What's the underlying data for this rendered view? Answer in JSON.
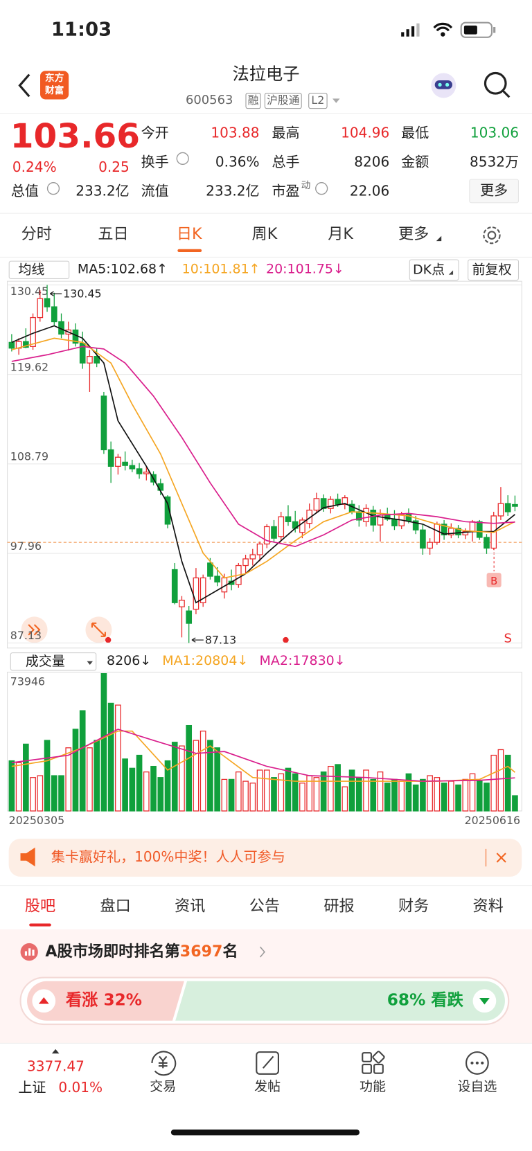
{
  "status_bar": {
    "time": "11:03"
  },
  "header": {
    "logo": [
      "东方",
      "财富"
    ],
    "title": "法拉电子",
    "code": "600563",
    "badges": [
      "融",
      "沪股通",
      "L2"
    ]
  },
  "quote": {
    "price": "103.66",
    "change_pct": "0.24%",
    "change": "0.25",
    "open": {
      "label": "今开",
      "value": "103.88"
    },
    "high": {
      "label": "最高",
      "value": "104.96"
    },
    "low": {
      "label": "最低",
      "value": "103.06"
    },
    "turnover": {
      "label": "换手",
      "value": "0.36%"
    },
    "volume": {
      "label": "总手",
      "value": "8206"
    },
    "amount": {
      "label": "金额",
      "value": "8532万"
    },
    "market_cap": {
      "label": "总值",
      "value": "233.2亿"
    },
    "float_cap": {
      "label": "流值",
      "value": "233.2亿"
    },
    "pe": {
      "label": "市盈",
      "sup": "动",
      "value": "22.06"
    },
    "more": "更多"
  },
  "tabs": {
    "items": [
      "分时",
      "五日",
      "日K",
      "周K",
      "月K",
      "更多"
    ],
    "active": 2
  },
  "indicator_bar": {
    "selector": "均线",
    "ma5": "MA5:102.68↑",
    "ma10": "10:101.81↑",
    "ma20": "20:101.75↓",
    "dk": "DK点",
    "adjust": "前复权"
  },
  "chart_data": {
    "type": "candlestick",
    "open": [
      123.5,
      122.8,
      123.6,
      123.0,
      126.5,
      128.8,
      127.8,
      126.0,
      124.5,
      125.0,
      123.4,
      121.0,
      121.8,
      117.0,
      110.5,
      108.5,
      109.0,
      108.6,
      108.2,
      107.6,
      107.5,
      106.4,
      104.8,
      96.0,
      91.5,
      91.0,
      91.2,
      92.0,
      96.8,
      95.2,
      93.3,
      94.6,
      94.2,
      96.5,
      97.3,
      97.8,
      99.1,
      101.2,
      100.0,
      102.4,
      101.8,
      100.5,
      101.6,
      103.2,
      104.6,
      103.4,
      104.5,
      103.9,
      103.9,
      103.0,
      101.8,
      103.2,
      101.4,
      102.6,
      102.1,
      101.3,
      102.7,
      101.9,
      100.8,
      98.6,
      99.3,
      101.5,
      100.2,
      101.0,
      100.2,
      100.6,
      101.8,
      99.9,
      98.6,
      102.5,
      104.0,
      103.88
    ],
    "high": [
      124.5,
      124.0,
      125.2,
      127.0,
      129.8,
      130.45,
      129.5,
      127.0,
      126.0,
      125.8,
      124.8,
      122.6,
      122.8,
      117.5,
      111.5,
      110.0,
      110.3,
      109.3,
      108.9,
      108.5,
      107.9,
      107.0,
      105.0,
      96.8,
      92.8,
      91.6,
      96.2,
      95.4,
      97.4,
      96.3,
      95.5,
      96.0,
      96.8,
      97.8,
      98.5,
      99.4,
      101.5,
      102.0,
      103.0,
      103.8,
      103.1,
      102.3,
      104.0,
      105.3,
      105.1,
      104.9,
      105.2,
      105.0,
      104.4,
      103.8,
      103.9,
      103.7,
      103.3,
      103.5,
      103.2,
      103.0,
      103.4,
      102.5,
      101.5,
      99.8,
      101.8,
      102.0,
      101.6,
      101.4,
      101.0,
      102.0,
      102.0,
      100.3,
      103.0,
      106.0,
      105.0,
      104.96
    ],
    "low": [
      122.4,
      122.0,
      122.8,
      122.6,
      126.0,
      127.2,
      125.5,
      124.0,
      122.5,
      123.0,
      120.3,
      117.5,
      120.5,
      110.0,
      106.5,
      107.5,
      108.0,
      107.8,
      107.0,
      106.8,
      106.2,
      105.0,
      101.0,
      91.8,
      87.8,
      87.13,
      90.6,
      91.5,
      94.8,
      94.0,
      92.5,
      93.5,
      93.8,
      95.5,
      96.5,
      97.0,
      98.6,
      99.3,
      99.5,
      101.3,
      100.5,
      99.8,
      101.0,
      102.8,
      103.0,
      102.8,
      103.6,
      103.3,
      102.7,
      101.2,
      101.2,
      100.6,
      99.4,
      101.9,
      100.8,
      100.9,
      101.6,
      100.3,
      97.8,
      97.8,
      99.0,
      99.6,
      99.8,
      99.8,
      99.7,
      99.4,
      99.6,
      97.9,
      98.4,
      102.0,
      102.5,
      103.06
    ],
    "close": [
      122.8,
      123.6,
      122.9,
      126.5,
      128.8,
      127.8,
      126.0,
      124.5,
      125.0,
      123.4,
      121.0,
      121.8,
      121.0,
      110.5,
      108.5,
      109.6,
      108.6,
      108.2,
      107.6,
      107.8,
      106.6,
      105.6,
      101.5,
      92.0,
      92.3,
      89.5,
      95.0,
      95.0,
      95.2,
      94.5,
      95.0,
      94.2,
      96.5,
      97.3,
      97.8,
      99.1,
      101.2,
      99.8,
      102.4,
      101.8,
      101.0,
      102.0,
      103.2,
      104.6,
      103.4,
      104.5,
      103.9,
      104.7,
      103.0,
      102.0,
      103.4,
      101.4,
      102.6,
      102.1,
      101.3,
      102.7,
      101.9,
      100.8,
      98.6,
      99.3,
      101.5,
      100.2,
      101.0,
      100.2,
      100.6,
      101.8,
      99.9,
      98.6,
      102.5,
      104.0,
      103.0,
      103.66
    ],
    "up_color": "#e8282a",
    "down_color": "#10a03c",
    "ylim": [
      87.13,
      130.45
    ],
    "yticks": [
      130.45,
      119.62,
      108.79,
      97.96,
      87.13
    ],
    "grid": true,
    "max_label": "130.45",
    "min_label": "87.13",
    "ref_line": 99.3,
    "ref_color": "#f08a3c",
    "signals": {
      "buy": "B",
      "sell": "S"
    },
    "lines": [
      {
        "color": "#111111",
        "x": [
          0,
          3,
          6,
          10,
          13,
          15,
          19,
          22,
          24,
          26,
          30,
          33,
          36,
          40,
          44,
          47,
          51,
          55,
          58,
          61,
          65,
          68,
          71
        ],
        "values": [
          123.5,
          124.6,
          125.5,
          124.0,
          121.0,
          114.0,
          108.5,
          104.0,
          97.0,
          92.0,
          94.0,
          95.5,
          98.0,
          101.0,
          103.5,
          104.0,
          102.5,
          102.0,
          101.5,
          100.3,
          100.6,
          100.6,
          102.68
        ]
      },
      {
        "color": "#f5a623",
        "x": [
          0,
          3,
          6,
          10,
          14,
          17,
          21,
          24,
          27,
          30,
          33,
          36,
          40,
          44,
          48,
          52,
          56,
          60,
          64,
          68,
          71
        ],
        "values": [
          122.6,
          123.3,
          124.0,
          123.5,
          121.0,
          116.0,
          110.0,
          104.0,
          98.0,
          95.0,
          95.5,
          97.0,
          99.5,
          101.8,
          103.0,
          102.8,
          102.5,
          101.5,
          100.7,
          100.5,
          101.81
        ]
      },
      {
        "color": "#d91e8c",
        "x": [
          0,
          5,
          10,
          13,
          16,
          20,
          24,
          28,
          32,
          36,
          40,
          44,
          48,
          52,
          56,
          60,
          64,
          68,
          71
        ],
        "values": [
          121.2,
          122.0,
          123.0,
          122.7,
          121.0,
          117.0,
          112.0,
          106.5,
          101.5,
          99.5,
          98.8,
          100.2,
          102.0,
          102.6,
          102.8,
          102.4,
          101.8,
          101.6,
          101.75
        ]
      }
    ]
  },
  "volume_header": {
    "selector": "成交量",
    "value": "8206↓",
    "ma1": "MA1:20804↓",
    "ma2": "MA2:17830↓"
  },
  "volume_chart": {
    "type": "bar",
    "values": [
      27000,
      26000,
      36000,
      18000,
      19000,
      38000,
      19000,
      19000,
      34000,
      44000,
      54000,
      34000,
      38000,
      73946,
      58000,
      57000,
      28000,
      23000,
      30000,
      21000,
      24000,
      18000,
      27000,
      37000,
      35000,
      46000,
      38000,
      43000,
      38000,
      34000,
      17000,
      17000,
      21000,
      16000,
      15000,
      22000,
      22000,
      18000,
      20000,
      23000,
      20000,
      15000,
      19000,
      18000,
      21000,
      24000,
      25000,
      13000,
      22000,
      18000,
      22000,
      17000,
      21000,
      15000,
      17000,
      16000,
      20000,
      14000,
      17000,
      19000,
      18000,
      15000,
      16000,
      14000,
      17000,
      20000,
      16000,
      15000,
      30000,
      33000,
      30000,
      8206
    ],
    "ylim": [
      0,
      73946
    ],
    "yticks": [
      73946
    ],
    "start_date": "20250305",
    "end_date": "20250616",
    "lines": [
      {
        "color": "#f5a623",
        "x": [
          0,
          5,
          10,
          15,
          17,
          22,
          28,
          34,
          40,
          50,
          60,
          66,
          70,
          71
        ],
        "values": [
          24000,
          27000,
          34000,
          43000,
          43000,
          22000,
          35000,
          18000,
          16000,
          16000,
          16000,
          17000,
          24000,
          20804
        ]
      },
      {
        "color": "#d91e8c",
        "x": [
          0,
          8,
          15,
          20,
          26,
          30,
          36,
          42,
          50,
          58,
          66,
          71
        ],
        "values": [
          26000,
          30000,
          44000,
          38000,
          31000,
          32000,
          24000,
          19000,
          18000,
          16000,
          16500,
          17830
        ]
      }
    ]
  },
  "banner": {
    "text": "集卡赢好礼，100%中奖！人人可参与"
  },
  "section_tabs": {
    "items": [
      "股吧",
      "盘口",
      "资讯",
      "公告",
      "研报",
      "财务",
      "资料"
    ],
    "active": 0
  },
  "rank": {
    "prefix": "A股市场即时排名第",
    "number": "3697",
    "suffix": "名"
  },
  "sentiment": {
    "bull": "看涨 32%",
    "bear": "68% 看跌"
  },
  "bottom_nav": {
    "index_value": "3377.47",
    "index_name": "上证",
    "index_change": "0.01%",
    "items": [
      "交易",
      "发帖",
      "功能",
      "设自选"
    ]
  }
}
